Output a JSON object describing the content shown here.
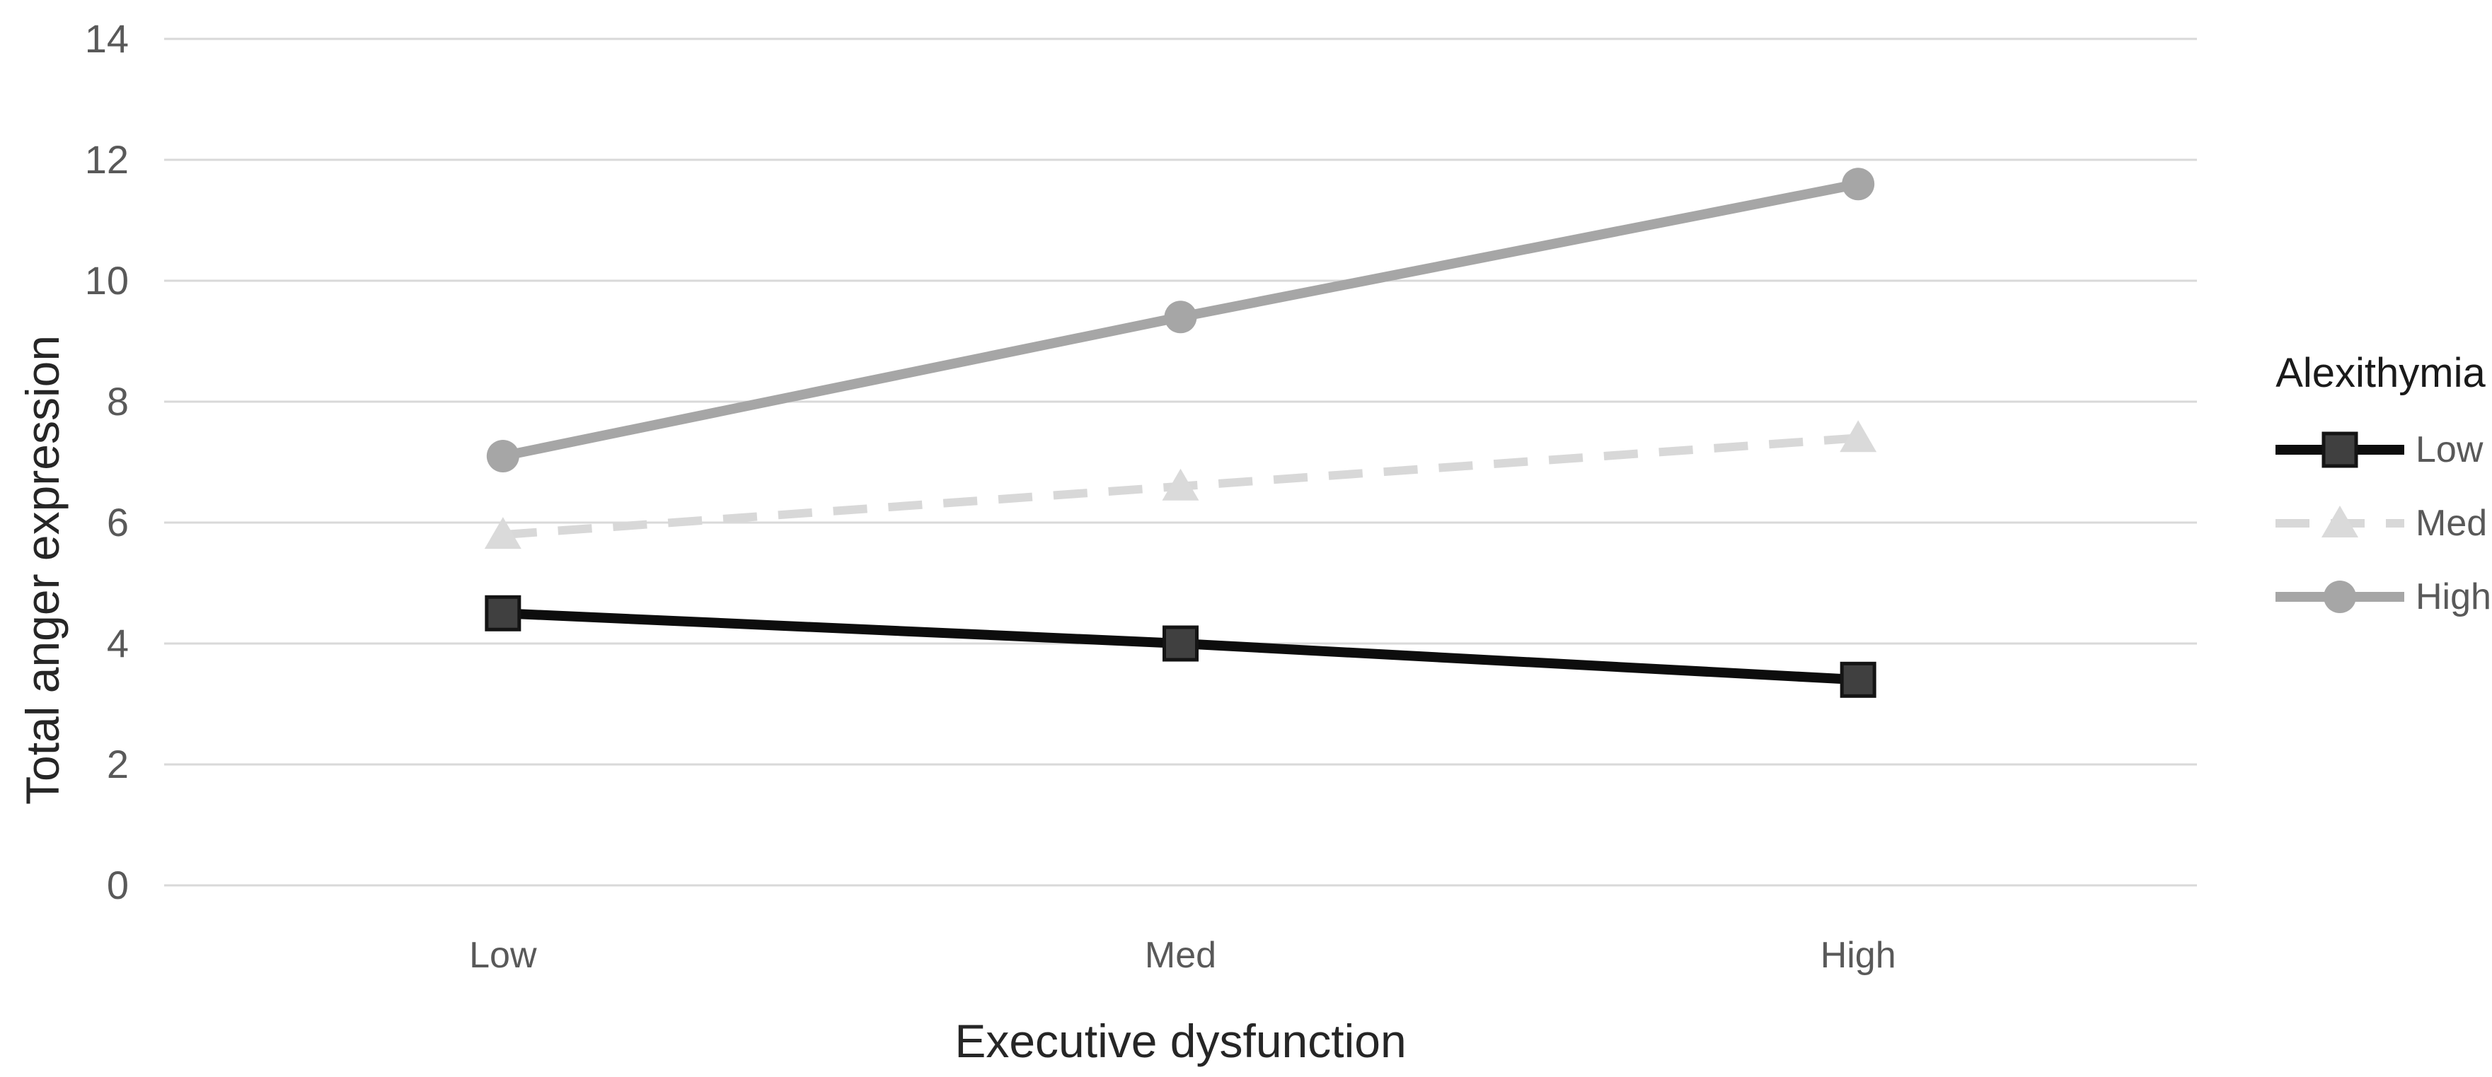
{
  "chart_data": {
    "type": "line",
    "title": "",
    "xlabel": "Executive dysfunction",
    "ylabel": "Total anger expression",
    "categories": [
      "Low",
      "Med",
      "High"
    ],
    "series": [
      {
        "name": "Low",
        "values": [
          4.5,
          4.0,
          3.4
        ],
        "color": "#0d0d0d",
        "marker": "square",
        "marker_color": "#404040",
        "marker_edge": "#141414",
        "dash": "solid"
      },
      {
        "name": "Med",
        "values": [
          5.8,
          6.6,
          7.4
        ],
        "color": "#d8d8d8",
        "marker": "triangle",
        "marker_color": "#dadada",
        "marker_edge": "none",
        "dash": "dashed"
      },
      {
        "name": "High",
        "values": [
          7.1,
          9.4,
          11.6
        ],
        "color": "#a6a6a6",
        "marker": "circle",
        "marker_color": "#a6a6a6",
        "marker_edge": "none",
        "dash": "solid"
      }
    ],
    "ylim": [
      0,
      14
    ],
    "yticks": [
      0,
      2,
      4,
      6,
      8,
      10,
      12,
      14
    ],
    "grid": true,
    "gridline_color": "#d9d9d9",
    "tick_label_color": "#595959",
    "axis_title_color": "#262626",
    "legend": {
      "title": "Alexithymia",
      "position": "right"
    }
  }
}
